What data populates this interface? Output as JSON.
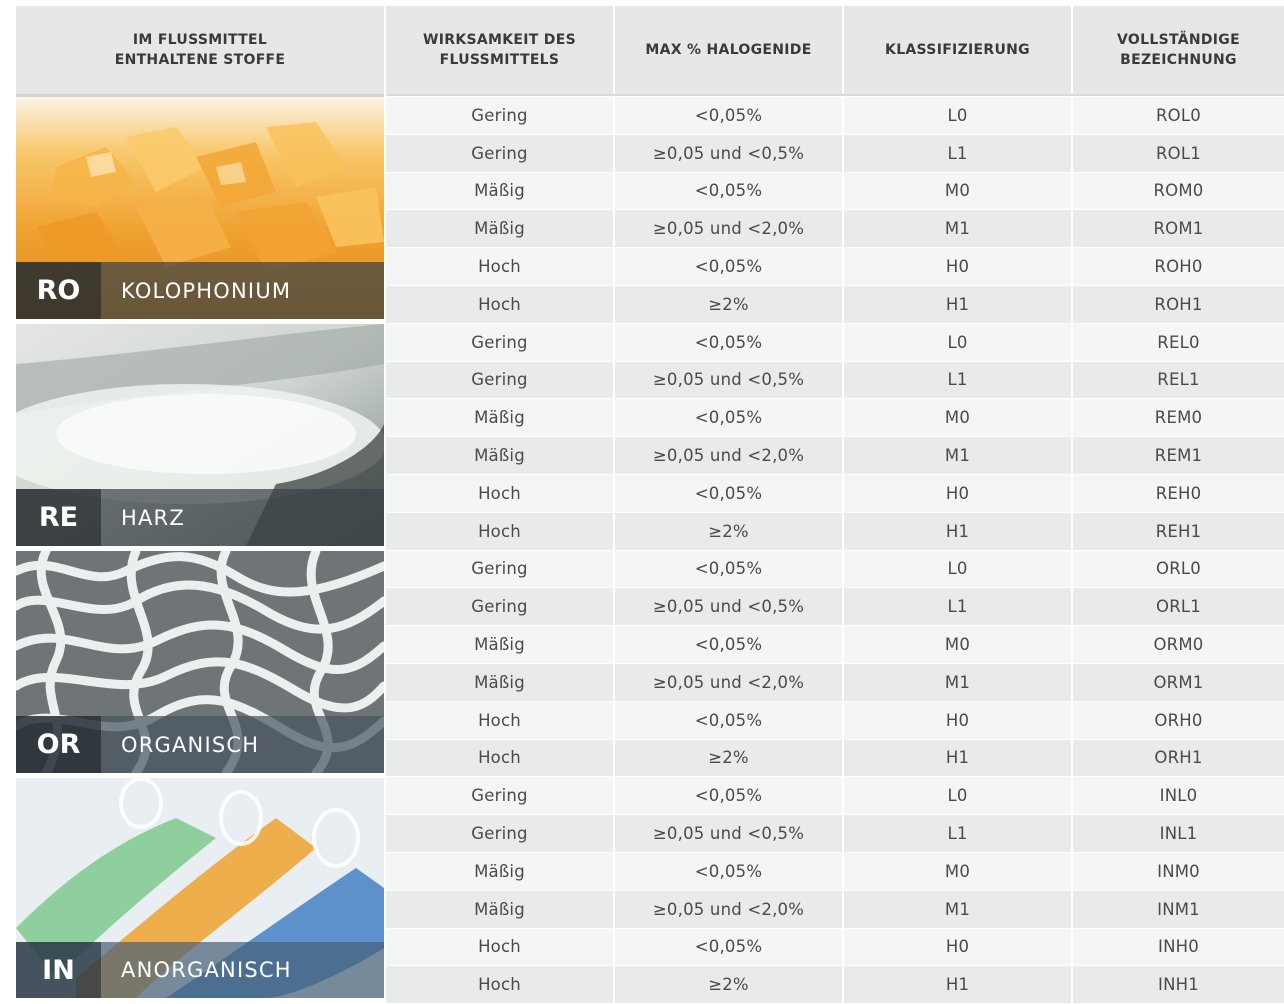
{
  "headers": [
    "IM FLUSSMITTEL\nENTHALTENE STOFFE",
    "WIRKSAMKEIT DES\nFLUSSMITTELS",
    "MAX % HALOGENIDE",
    "KLASSIFIZIERUNG",
    "VOLLSTÄNDIGE\nBEZEICHNUNG"
  ],
  "materials": [
    {
      "code": "RO",
      "name": "KOLOPHONIUM",
      "image": "amber-rosin-crystals"
    },
    {
      "code": "RE",
      "name": "HARZ",
      "image": "white-resin-granules"
    },
    {
      "code": "OR",
      "name": "ORGANISCH",
      "image": "organic-mesh-structure"
    },
    {
      "code": "IN",
      "name": "ANORGANISCH",
      "image": "colored-granules-test-tubes"
    }
  ],
  "rows": [
    [
      "Gering",
      "<0,05%",
      "L0",
      "ROL0"
    ],
    [
      "Gering",
      "≥0,05 und <0,5%",
      "L1",
      "ROL1"
    ],
    [
      "Mäßig",
      "<0,05%",
      "M0",
      "ROM0"
    ],
    [
      "Mäßig",
      "≥0,05 und <2,0%",
      "M1",
      "ROM1"
    ],
    [
      "Hoch",
      "<0,05%",
      "H0",
      "ROH0"
    ],
    [
      "Hoch",
      "≥2%",
      "H1",
      "ROH1"
    ],
    [
      "Gering",
      "<0,05%",
      "L0",
      "REL0"
    ],
    [
      "Gering",
      "≥0,05 und <0,5%",
      "L1",
      "REL1"
    ],
    [
      "Mäßig",
      "<0,05%",
      "M0",
      "REM0"
    ],
    [
      "Mäßig",
      "≥0,05 und <2,0%",
      "M1",
      "REM1"
    ],
    [
      "Hoch",
      "<0,05%",
      "H0",
      "REH0"
    ],
    [
      "Hoch",
      "≥2%",
      "H1",
      "REH1"
    ],
    [
      "Gering",
      "<0,05%",
      "L0",
      "ORL0"
    ],
    [
      "Gering",
      "≥0,05 und <0,5%",
      "L1",
      "ORL1"
    ],
    [
      "Mäßig",
      "<0,05%",
      "M0",
      "ORM0"
    ],
    [
      "Mäßig",
      "≥0,05 und <2,0%",
      "M1",
      "ORM1"
    ],
    [
      "Hoch",
      "<0,05%",
      "H0",
      "ORH0"
    ],
    [
      "Hoch",
      "≥2%",
      "H1",
      "ORH1"
    ],
    [
      "Gering",
      "<0,05%",
      "L0",
      "INL0"
    ],
    [
      "Gering",
      "≥0,05 und <0,5%",
      "L1",
      "INL1"
    ],
    [
      "Mäßig",
      "<0,05%",
      "M0",
      "INM0"
    ],
    [
      "Mäßig",
      "≥0,05 und <2,0%",
      "M1",
      "INM1"
    ],
    [
      "Hoch",
      "<0,05%",
      "H0",
      "INH0"
    ],
    [
      "Hoch",
      "≥2%",
      "H1",
      "INH1"
    ]
  ],
  "colors": {
    "header_bg": "#e6e7e8",
    "row_light": "#f4f5f5",
    "row_dark": "#e9eaea",
    "label_code_bg": "rgba(40,45,48,0.88)",
    "label_name_bg": "rgba(60,66,70,0.72)"
  }
}
